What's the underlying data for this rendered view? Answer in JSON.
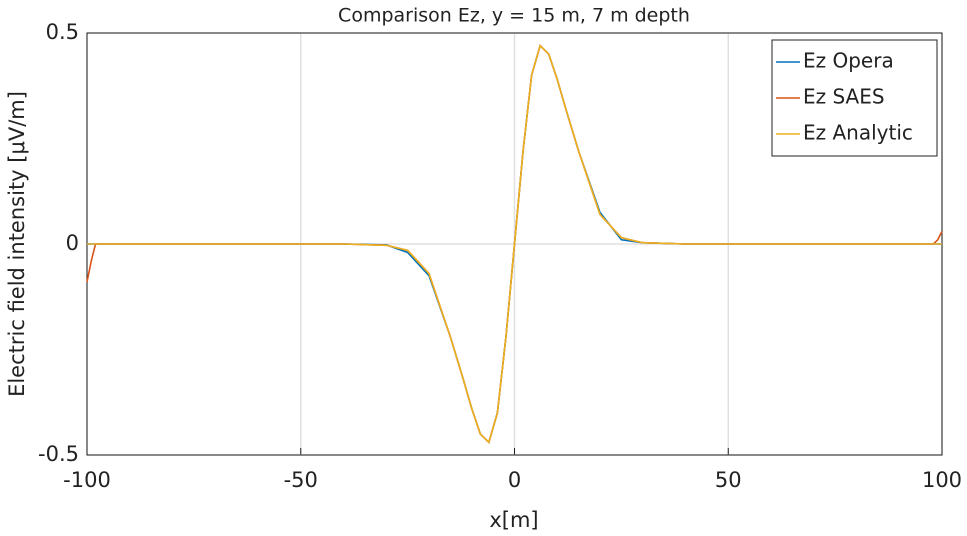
{
  "chart_data": {
    "type": "line",
    "title": "Comparison Ez, y = 15 m, 7 m depth",
    "x_label": "x[m]",
    "y_label": "Electric field intensity [μV/m]",
    "x": [
      -100,
      -99,
      -98,
      -40,
      -30,
      -25,
      -20,
      -15,
      -12,
      -10,
      -8,
      -6,
      -4,
      -2,
      0,
      2,
      4,
      6,
      8,
      10,
      12,
      15,
      20,
      25,
      30,
      40,
      98,
      99,
      100
    ],
    "series": [
      {
        "name": "Ez Opera",
        "color": "#0072bd",
        "values": [
          0,
          0,
          0,
          0,
          -0.002,
          -0.02,
          -0.075,
          -0.22,
          -0.32,
          -0.39,
          -0.45,
          -0.47,
          -0.4,
          -0.22,
          0,
          0.22,
          0.4,
          0.47,
          0.45,
          0.39,
          0.32,
          0.22,
          0.075,
          0.01,
          0.003,
          0,
          0,
          0,
          0
        ]
      },
      {
        "name": "Ez SAES",
        "color": "#d95319",
        "values": [
          -0.09,
          -0.04,
          0,
          0,
          -0.003,
          -0.015,
          -0.07,
          -0.22,
          -0.32,
          -0.39,
          -0.45,
          -0.47,
          -0.4,
          -0.22,
          0,
          0.22,
          0.4,
          0.47,
          0.45,
          0.39,
          0.32,
          0.22,
          0.07,
          0.015,
          0.003,
          0,
          0,
          0.01,
          0.03
        ]
      },
      {
        "name": "Ez Analytic",
        "color": "#edb120",
        "values": [
          0,
          0,
          0,
          0,
          -0.003,
          -0.015,
          -0.07,
          -0.22,
          -0.32,
          -0.39,
          -0.45,
          -0.47,
          -0.4,
          -0.22,
          0,
          0.22,
          0.4,
          0.47,
          0.45,
          0.39,
          0.32,
          0.22,
          0.07,
          0.015,
          0.003,
          0,
          0,
          0,
          0
        ]
      }
    ],
    "xlim": [
      -100,
      100
    ],
    "xticks": [
      -100,
      -50,
      0,
      50,
      100
    ],
    "ylim": [
      -0.5,
      0.5
    ],
    "yticks": [
      -0.5,
      0,
      0.5
    ],
    "grid": true,
    "legend": "top-right"
  }
}
